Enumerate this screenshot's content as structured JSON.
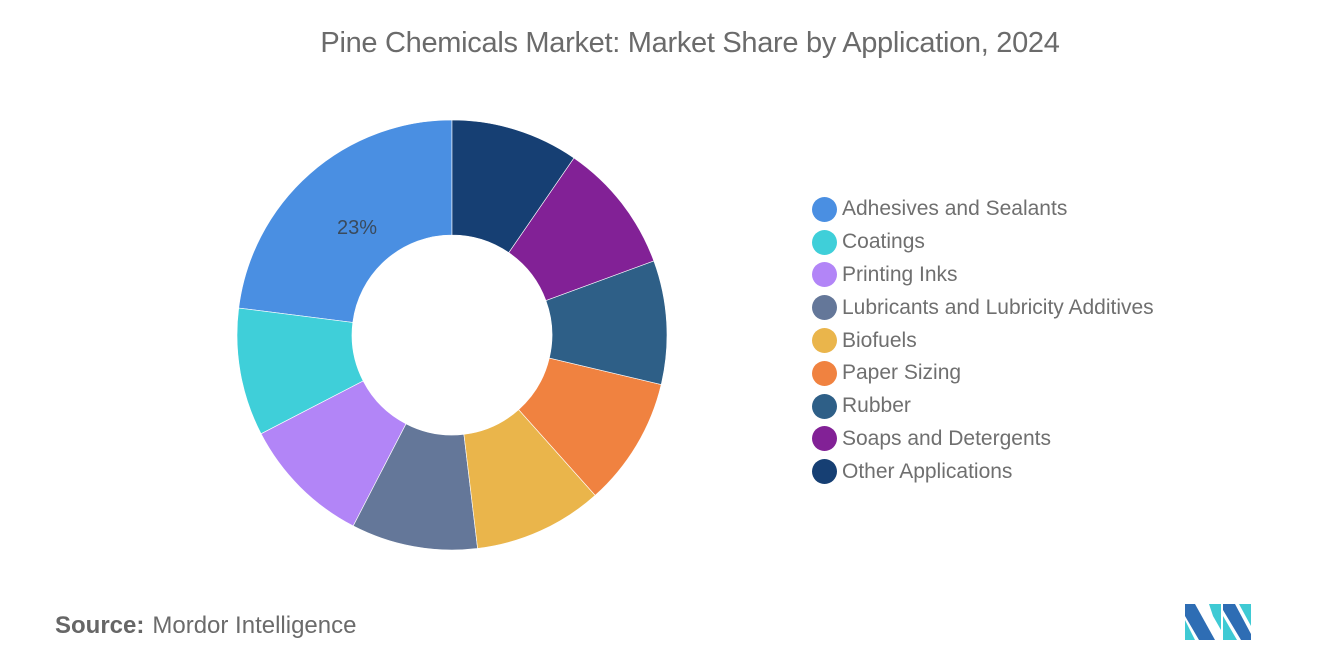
{
  "title": "Pine Chemicals Market: Market Share by Application, 2024",
  "source": {
    "label": "Source:",
    "value": "Mordor Intelligence"
  },
  "logo": {
    "name": "mordor-intelligence-logo",
    "colors": [
      "#2e6db4",
      "#3fcad4"
    ]
  },
  "chart_data": {
    "type": "pie",
    "variant": "donut",
    "title": "Pine Chemicals Market: Market Share by Application, 2024",
    "categories": [
      "Adhesives and Sealants",
      "Coatings",
      "Printing Inks",
      "Lubricants and Lubricity Additives",
      "Biofuels",
      "Paper Sizing",
      "Rubber",
      "Soaps and Detergents",
      "Other Applications"
    ],
    "values": [
      23,
      9.6,
      9.8,
      9.5,
      9.7,
      9.7,
      9.3,
      9.8,
      9.6
    ],
    "colors": [
      "#4a8fe2",
      "#3fcfd9",
      "#b285f7",
      "#647799",
      "#eab54b",
      "#f08240",
      "#2e5f87",
      "#822196",
      "#163f73"
    ],
    "data_labels": [
      {
        "category": "Adhesives and Sealants",
        "text": "23%"
      }
    ],
    "legend_position": "right",
    "direction": "counter-clockwise from top"
  },
  "legend": {
    "items": [
      {
        "label": "Adhesives and Sealants",
        "color": "#4a8fe2"
      },
      {
        "label": "Coatings",
        "color": "#3fcfd9"
      },
      {
        "label": "Printing Inks",
        "color": "#b285f7"
      },
      {
        "label": "Lubricants and Lubricity Additives",
        "color": "#647799"
      },
      {
        "label": "Biofuels",
        "color": "#eab54b"
      },
      {
        "label": "Paper Sizing",
        "color": "#f08240"
      },
      {
        "label": "Rubber",
        "color": "#2e5f87"
      },
      {
        "label": "Soaps and Detergents",
        "color": "#822196"
      },
      {
        "label": "Other Applications",
        "color": "#163f73"
      }
    ]
  }
}
